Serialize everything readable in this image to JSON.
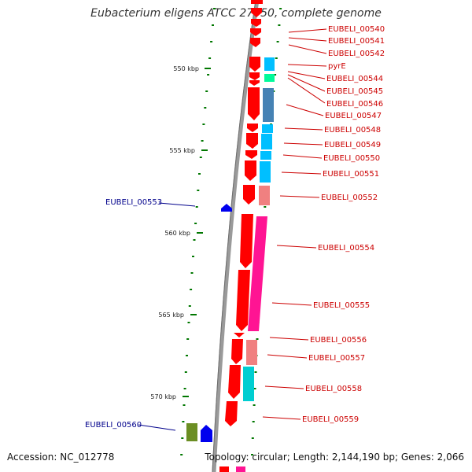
{
  "title": "Eubacterium eligens ATCC 27750, complete genome",
  "accession": "Accession: NC_012778",
  "topology": "Topology: circular; Length: 2,144,190 bp; Genes: 2,066",
  "scale_ticks": [
    "550 kbp",
    "555 kbp",
    "560 kbp",
    "565 kbp",
    "570 kbp"
  ],
  "right_labels": [
    "EUBELI_00540",
    "EUBELI_00541",
    "EUBELI_00542",
    "pyrE",
    "EUBELI_00544",
    "EUBELI_00545",
    "EUBELI_00546",
    "EUBELI_00547",
    "EUBELI_00548",
    "EUBELI_00549",
    "EUBELI_00550",
    "EUBELI_00551",
    "EUBELI_00552",
    "EUBELI_00554",
    "EUBELI_00555",
    "EUBELI_00556",
    "EUBELI_00557",
    "EUBELI_00558",
    "EUBELI_00559"
  ],
  "left_labels": [
    "EUBELI_00553",
    "EUBELI_00560"
  ],
  "colors": {
    "backbone": "#808080",
    "gene_forward": "#ff0000",
    "gene_reverse": "#0000ee",
    "label_right": "#cc0000",
    "label_left": "#00008b",
    "tick": "#007700",
    "cog_blue": "#4682b4",
    "cog_cyan": "#00bfff",
    "cog_pink": "#ff1493",
    "cog_salmon": "#f08080",
    "cog_teal": "#00ced1",
    "cog_green": "#6b8e23",
    "cog_mint": "#00fa9a"
  }
}
